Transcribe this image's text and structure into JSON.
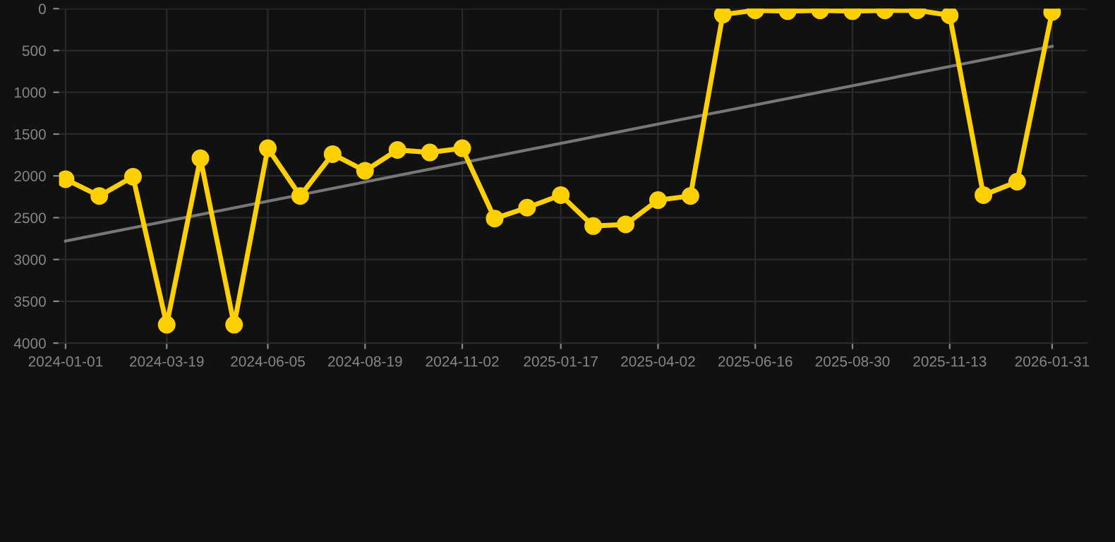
{
  "chart_data": {
    "type": "line",
    "x": [
      "2024-01-01",
      "2024-01-27",
      "2024-02-22",
      "2024-03-19",
      "2024-04-14",
      "2024-05-10",
      "2024-06-05",
      "2024-06-30",
      "2024-07-25",
      "2024-08-19",
      "2024-09-13",
      "2024-10-08",
      "2024-11-02",
      "2024-11-27",
      "2024-12-22",
      "2025-01-17",
      "2025-02-11",
      "2025-03-08",
      "2025-04-02",
      "2025-04-27",
      "2025-05-22",
      "2025-06-16",
      "2025-07-11",
      "2025-08-05",
      "2025-08-30",
      "2025-09-24",
      "2025-10-19",
      "2025-11-13",
      "2025-12-09",
      "2026-01-04",
      "2026-01-31"
    ],
    "series": [
      {
        "color": "#ffd000",
        "marker": "circle",
        "values": [
          2040,
          2240,
          2010,
          3780,
          1790,
          3780,
          1670,
          2240,
          1740,
          1940,
          1690,
          1720,
          1670,
          2510,
          2380,
          2230,
          2600,
          2580,
          2290,
          2240,
          70,
          20,
          30,
          20,
          30,
          20,
          20,
          80,
          2230,
          2070,
          40
        ]
      },
      {
        "color": "#777777",
        "marker": "none",
        "x": [
          "2024-01-01",
          "2026-01-31"
        ],
        "values": [
          2780,
          450
        ]
      }
    ],
    "ylim": [
      4000,
      0
    ],
    "yticks": [
      0,
      500,
      1000,
      1500,
      2000,
      2500,
      3000,
      3500,
      4000
    ],
    "xlim": [
      "2023-12-27",
      "2026-02-27"
    ],
    "xticks": [
      "2024-01-01",
      "2024-03-19",
      "2024-06-05",
      "2024-08-19",
      "2024-11-02",
      "2025-01-17",
      "2025-04-02",
      "2025-06-16",
      "2025-08-30",
      "2025-11-13",
      "2026-01-31"
    ],
    "grid": true,
    "line_style": "solid"
  }
}
